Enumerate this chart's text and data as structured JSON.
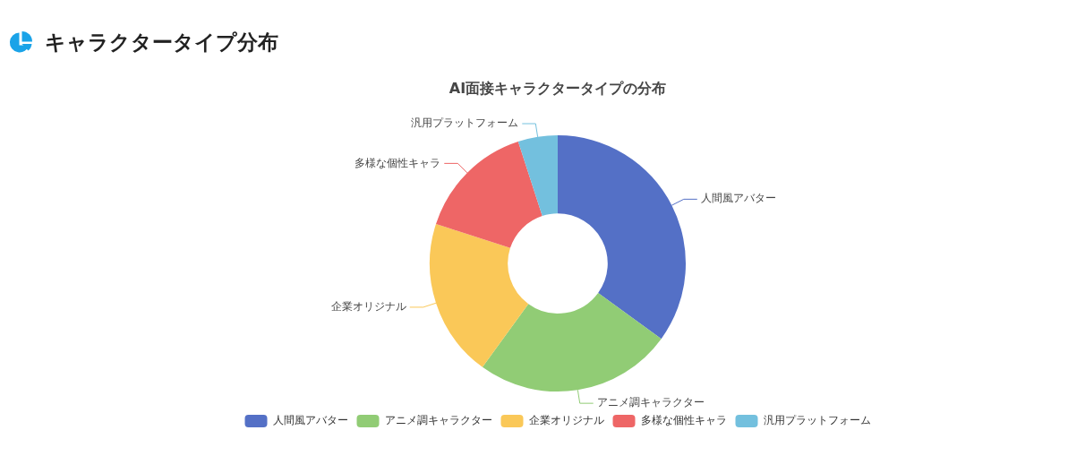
{
  "chart_data": {
    "type": "donut",
    "title": "キャラクタータイプ分布",
    "subtitle": "AI面接キャラクタータイプの分布",
    "categories": [
      "人間風アバター",
      "アニメ調キャラクター",
      "企業オリジナル",
      "多様な個性キャラ",
      "汎用プラットフォーム"
    ],
    "values": [
      35,
      25,
      20,
      15,
      5
    ],
    "colors": [
      "#5470c6",
      "#91cc75",
      "#fac858",
      "#ee6666",
      "#73c0de"
    ],
    "legend": "bottom"
  }
}
